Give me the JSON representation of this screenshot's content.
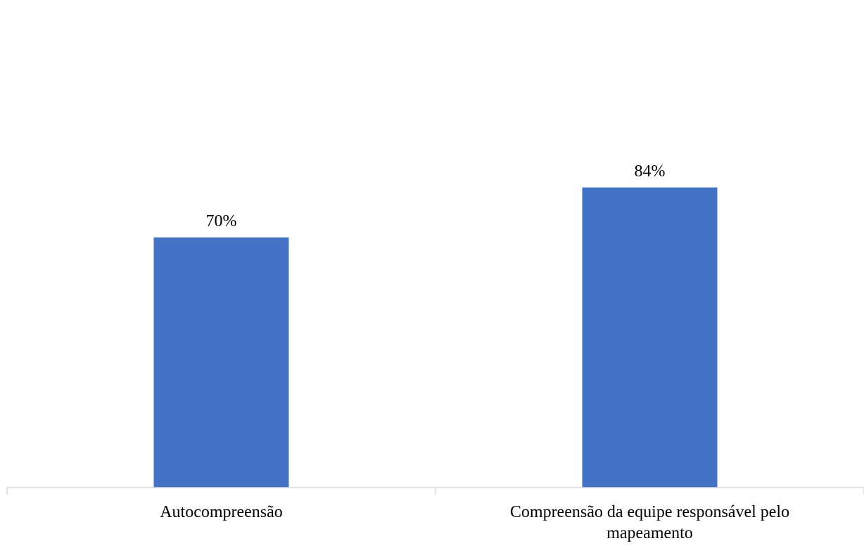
{
  "chart_data": {
    "type": "bar",
    "categories": [
      "Autocompreensão",
      "Compreensão da equipe responsável pelo mapeamento"
    ],
    "values": [
      70,
      84
    ],
    "value_labels": [
      "70%",
      "84%"
    ],
    "unit": "%",
    "title": "",
    "xlabel": "",
    "ylabel": "",
    "ylim": [
      0,
      100
    ],
    "grid": false,
    "legend": "none",
    "bar_color": "#4472C4",
    "axis_color": "#D9D9D9"
  }
}
